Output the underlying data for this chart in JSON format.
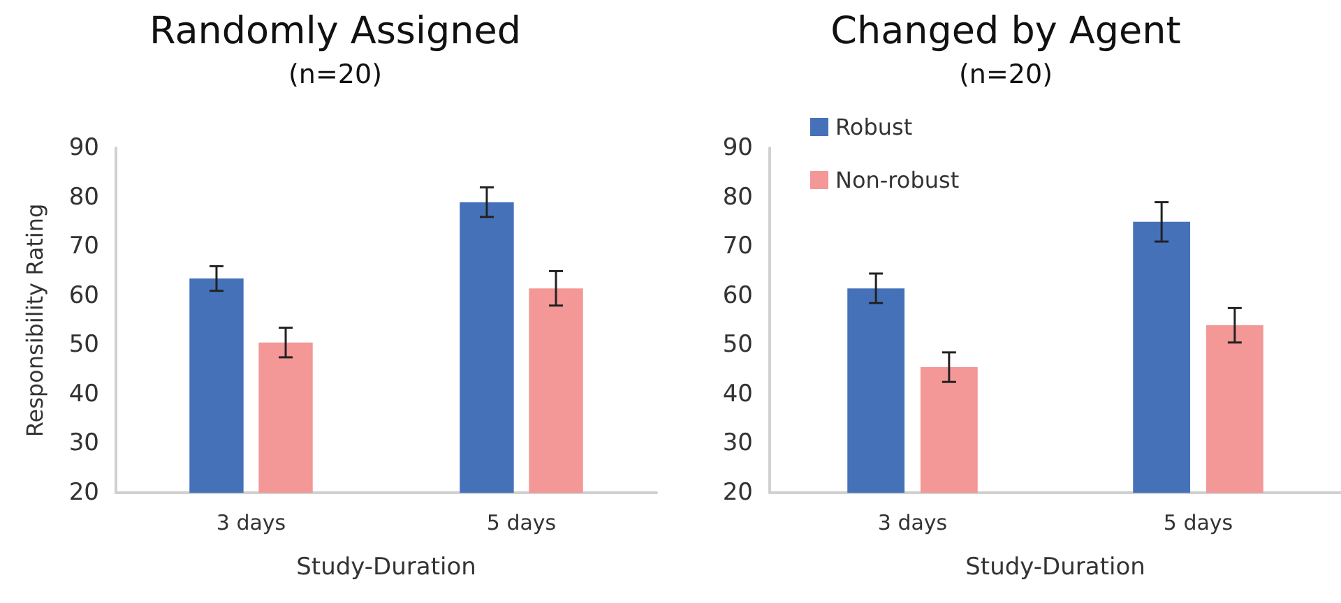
{
  "chart_data": [
    {
      "type": "bar",
      "title": "Randomly Assigned",
      "subtitle": "(n=20)",
      "xlabel": "Study-Duration",
      "ylabel": "Responsibility Rating",
      "categories": [
        "3 days",
        "5 days"
      ],
      "series": [
        {
          "color": "#4571b9",
          "values": [
            63.5,
            79
          ],
          "errors": [
            2.5,
            3
          ]
        },
        {
          "color": "#f49797",
          "values": [
            50.5,
            61.5
          ],
          "errors": [
            3,
            3.5
          ]
        }
      ],
      "ylim": [
        20,
        90
      ],
      "yticks": [
        20,
        30,
        40,
        50,
        60,
        70,
        80,
        90
      ],
      "grid": false,
      "legend": false
    },
    {
      "type": "bar",
      "title": "Changed by Agent",
      "subtitle": "(n=20)",
      "xlabel": "Study-Duration",
      "categories": [
        "3 days",
        "5 days"
      ],
      "series": [
        {
          "name": "Robust",
          "color": "#4571b9",
          "values": [
            61.5,
            75
          ],
          "errors": [
            3,
            4
          ]
        },
        {
          "name": "Non-robust",
          "color": "#f49797",
          "values": [
            45.5,
            54
          ],
          "errors": [
            3,
            3.5
          ]
        }
      ],
      "ylim": [
        20,
        90
      ],
      "yticks": [
        20,
        30,
        40,
        50,
        60,
        70,
        80,
        90
      ],
      "grid": false,
      "legend": "top left"
    }
  ]
}
